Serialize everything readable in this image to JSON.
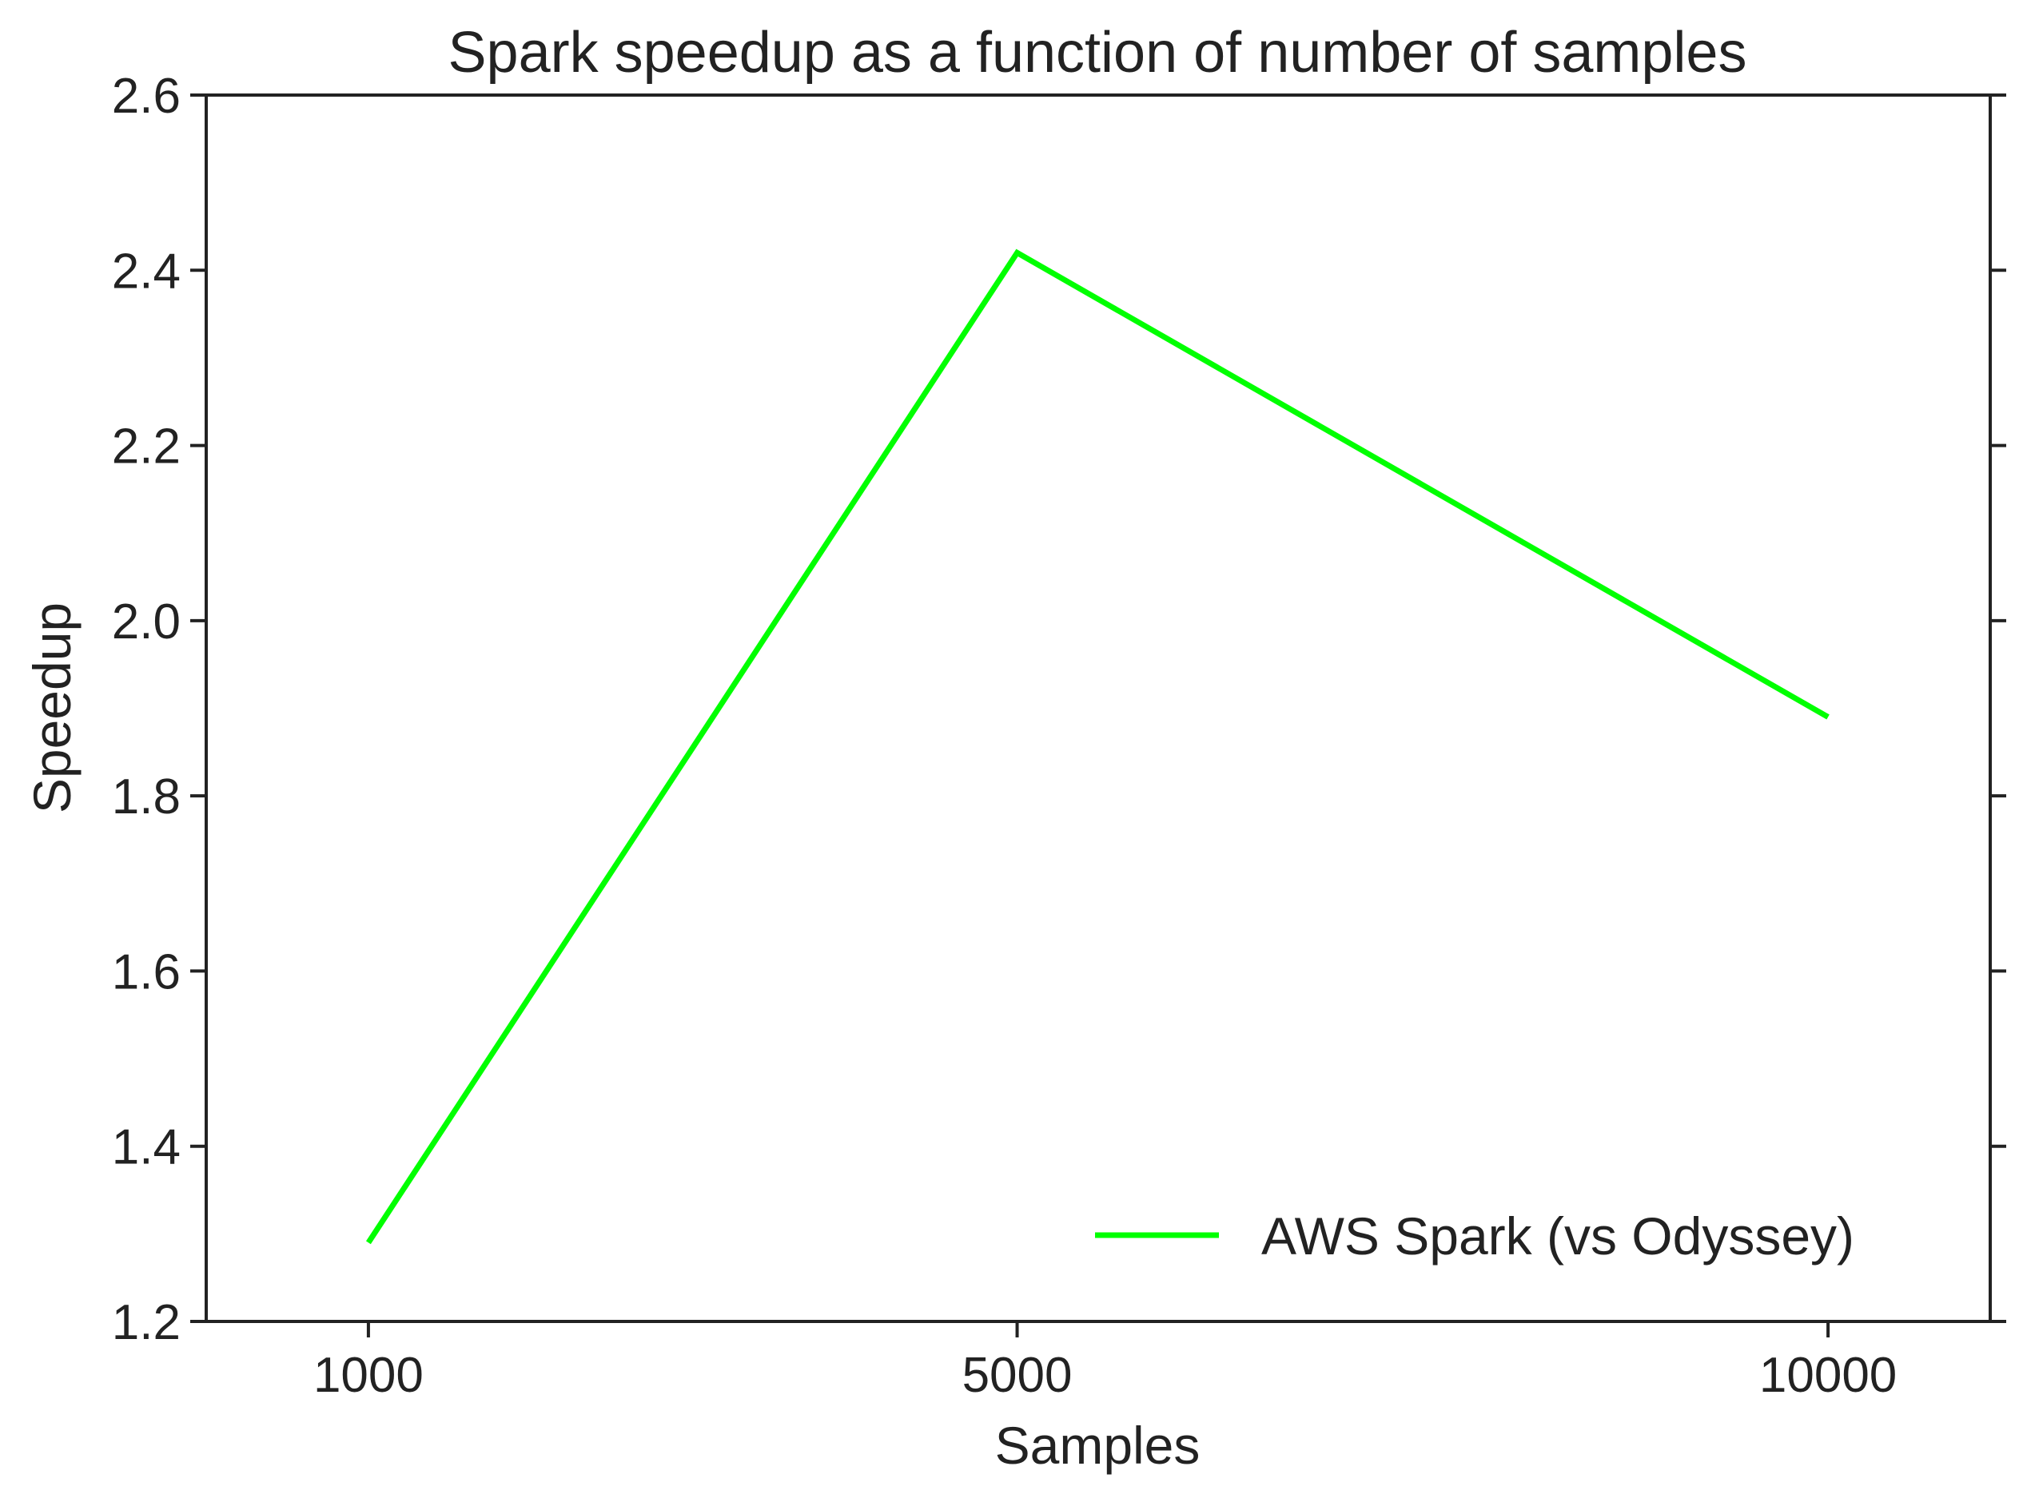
{
  "chart_data": {
    "type": "line",
    "title": "Spark speedup as a function of number of samples",
    "xlabel": "Samples",
    "ylabel": "Speedup",
    "categories": [
      "1000",
      "5000",
      "10000"
    ],
    "x": [
      1000,
      5000,
      10000
    ],
    "series": [
      {
        "name": "AWS Spark (vs Odyssey)",
        "color": "#00ff00",
        "values": [
          1.29,
          2.42,
          1.89
        ]
      }
    ],
    "xlim": [
      0,
      11000
    ],
    "ylim": [
      1.2,
      2.6
    ],
    "yticks": [
      "1.2",
      "1.4",
      "1.6",
      "1.8",
      "2.0",
      "2.2",
      "2.4",
      "2.6"
    ],
    "xticks": [
      "1000",
      "5000",
      "10000"
    ],
    "grid": false,
    "legend_position": "lower-right"
  }
}
